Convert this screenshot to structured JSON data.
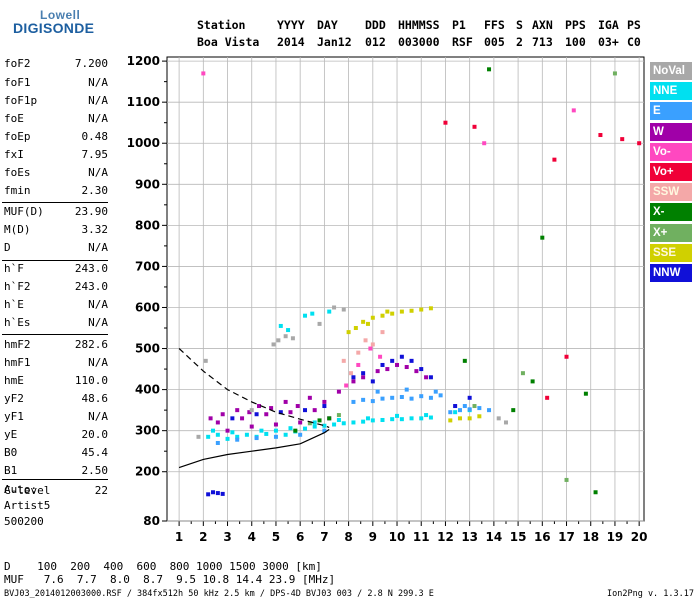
{
  "logo": {
    "line1": "Lowell",
    "line2": "DIGISONDE"
  },
  "header": [
    {
      "label": "Station",
      "value": "Boa Vista"
    },
    {
      "label": "YYYY",
      "value": "2014"
    },
    {
      "label": "DAY",
      "value": "Jan12"
    },
    {
      "label": "DDD",
      "value": "012"
    },
    {
      "label": "HHMMSS",
      "value": "003000"
    },
    {
      "label": "P1",
      "value": "RSF"
    },
    {
      "label": "FFS",
      "value": "005"
    },
    {
      "label": "S",
      "value": "2"
    },
    {
      "label": "AXN",
      "value": "713"
    },
    {
      "label": "PPS",
      "value": "100"
    },
    {
      "label": "IGA",
      "value": "03+"
    },
    {
      "label": "PS",
      "value": "C0"
    }
  ],
  "params": [
    {
      "label": "foF2",
      "value": "7.200"
    },
    {
      "label": "foF1",
      "value": "N/A"
    },
    {
      "label": "foF1p",
      "value": "N/A"
    },
    {
      "label": "foE",
      "value": "N/A"
    },
    {
      "label": "foEp",
      "value": "0.48"
    },
    {
      "label": "fxI",
      "value": "7.95"
    },
    {
      "label": "foEs",
      "value": "N/A"
    },
    {
      "label": "fmin",
      "value": "2.30"
    },
    {
      "label": "MUF(D)",
      "value": "23.90"
    },
    {
      "label": "M(D)",
      "value": "3.32"
    },
    {
      "label": "D",
      "value": "N/A"
    },
    {
      "label": "h`F",
      "value": "243.0"
    },
    {
      "label": "h`F2",
      "value": "243.0"
    },
    {
      "label": "h`E",
      "value": "N/A"
    },
    {
      "label": "h`Es",
      "value": "N/A"
    },
    {
      "label": "hmF2",
      "value": "282.6"
    },
    {
      "label": "hmF1",
      "value": "N/A"
    },
    {
      "label": "hmE",
      "value": "110.0"
    },
    {
      "label": "yF2",
      "value": "48.6"
    },
    {
      "label": "yF1",
      "value": "N/A"
    },
    {
      "label": "yE",
      "value": "20.0"
    },
    {
      "label": "B0",
      "value": "45.4"
    },
    {
      "label": "B1",
      "value": "2.50"
    },
    {
      "label": "C-level",
      "value": "22"
    }
  ],
  "notes": [
    "Auto:",
    "Artist5",
    "500200"
  ],
  "legend": [
    {
      "label": "NoVal",
      "color": "#a8a8a8"
    },
    {
      "label": "NNE",
      "color": "#00e0f0"
    },
    {
      "label": "E",
      "color": "#3aa0ff"
    },
    {
      "label": "W",
      "color": "#a000a8"
    },
    {
      "label": "Vo-",
      "color": "#ff48c0"
    },
    {
      "label": "Vo+",
      "color": "#f00038"
    },
    {
      "label": "SSW",
      "color": "#f4a8a8"
    },
    {
      "label": "X-",
      "color": "#008000"
    },
    {
      "label": "X+",
      "color": "#70b060"
    },
    {
      "label": "SSE",
      "color": "#d0d000"
    },
    {
      "label": "NNW",
      "color": "#1010d8"
    }
  ],
  "muf_table": {
    "d_line": "D    100  200  400  600  800 1000 1500 3000 [km]",
    "muf_line": "MUF   7.6  7.7  8.0  8.7  9.5 10.8 14.4 23.9 [MHz]"
  },
  "footer": {
    "left": "BVJ03_2014012003000.RSF / 384fx512h 50 kHz 2.5 km / DPS-4D BVJ03 003 / 2.8 N 299.3 E",
    "right": "Ion2Png v. 1.3.17"
  },
  "chart_data": {
    "type": "scatter",
    "xlim": [
      0.5,
      20.2
    ],
    "ylim": [
      80,
      1210
    ],
    "x_ticks": [
      "1",
      "2",
      "3",
      "4",
      "5",
      "6",
      "7",
      "8",
      "9",
      "10",
      "11",
      "12",
      "13",
      "14",
      "15",
      "16",
      "17",
      "18",
      "19",
      "20"
    ],
    "y_ticks": [
      "80",
      "200",
      "300",
      "400",
      "500",
      "600",
      "700",
      "800",
      "900",
      "1000",
      "1100",
      "1200"
    ],
    "grid": true,
    "xlabel": "",
    "ylabel": "",
    "series": [
      {
        "name": "NNE",
        "color": "#00e0f0",
        "points": [
          [
            2.2,
            285
          ],
          [
            2.6,
            290
          ],
          [
            3.0,
            280
          ],
          [
            3.4,
            285
          ],
          [
            3.8,
            290
          ],
          [
            4.2,
            285
          ],
          [
            4.6,
            292
          ],
          [
            5.0,
            300
          ],
          [
            5.4,
            290
          ],
          [
            5.8,
            298
          ],
          [
            6.2,
            305
          ],
          [
            6.6,
            310
          ],
          [
            7.0,
            312
          ],
          [
            7.4,
            315
          ],
          [
            7.8,
            318
          ],
          [
            8.2,
            320
          ],
          [
            8.6,
            322
          ],
          [
            9.0,
            325
          ],
          [
            9.4,
            326
          ],
          [
            9.8,
            328
          ],
          [
            10.2,
            328
          ],
          [
            10.6,
            330
          ],
          [
            11.0,
            330
          ],
          [
            11.4,
            332
          ],
          [
            2.4,
            300
          ],
          [
            3.2,
            296
          ],
          [
            4.4,
            300
          ],
          [
            5.6,
            306
          ],
          [
            6.6,
            320
          ],
          [
            7.6,
            326
          ],
          [
            8.8,
            330
          ],
          [
            10.0,
            336
          ],
          [
            11.2,
            338
          ],
          [
            12.4,
            345
          ],
          [
            13.0,
            350
          ],
          [
            5.2,
            555
          ],
          [
            5.5,
            545
          ],
          [
            6.2,
            580
          ],
          [
            6.5,
            585
          ],
          [
            7.2,
            590
          ]
        ]
      },
      {
        "name": "E",
        "color": "#3aa0ff",
        "points": [
          [
            8.2,
            370
          ],
          [
            8.6,
            375
          ],
          [
            9.0,
            372
          ],
          [
            9.4,
            378
          ],
          [
            9.8,
            380
          ],
          [
            10.2,
            382
          ],
          [
            10.6,
            378
          ],
          [
            11.0,
            384
          ],
          [
            11.4,
            380
          ],
          [
            11.8,
            386
          ],
          [
            12.2,
            345
          ],
          [
            12.6,
            350
          ],
          [
            13.0,
            352
          ],
          [
            13.4,
            355
          ],
          [
            13.8,
            350
          ],
          [
            2.6,
            270
          ],
          [
            3.4,
            278
          ],
          [
            4.2,
            282
          ],
          [
            5.0,
            285
          ],
          [
            6.0,
            290
          ],
          [
            7.0,
            300
          ],
          [
            9.2,
            395
          ],
          [
            10.4,
            400
          ],
          [
            11.6,
            395
          ],
          [
            12.8,
            360
          ]
        ]
      },
      {
        "name": "W",
        "color": "#a000a8",
        "points": [
          [
            2.3,
            330
          ],
          [
            2.8,
            340
          ],
          [
            3.4,
            350
          ],
          [
            3.9,
            345
          ],
          [
            4.3,
            360
          ],
          [
            4.8,
            355
          ],
          [
            5.4,
            370
          ],
          [
            5.9,
            360
          ],
          [
            6.4,
            380
          ],
          [
            7.0,
            370
          ],
          [
            7.6,
            395
          ],
          [
            8.2,
            420
          ],
          [
            8.6,
            430
          ],
          [
            9.2,
            445
          ],
          [
            9.6,
            450
          ],
          [
            10.0,
            460
          ],
          [
            10.4,
            455
          ],
          [
            10.8,
            445
          ],
          [
            11.2,
            430
          ],
          [
            3.0,
            300
          ],
          [
            4.0,
            310
          ],
          [
            5.0,
            315
          ],
          [
            6.0,
            320
          ],
          [
            7.2,
            330
          ],
          [
            2.6,
            320
          ],
          [
            3.6,
            330
          ],
          [
            4.6,
            340
          ],
          [
            5.6,
            345
          ],
          [
            6.6,
            350
          ]
        ]
      },
      {
        "name": "Vo-",
        "color": "#ff48c0",
        "points": [
          [
            8.4,
            460
          ],
          [
            8.9,
            500
          ],
          [
            9.3,
            480
          ],
          [
            7.9,
            410
          ],
          [
            13.6,
            1000
          ],
          [
            17.3,
            1080
          ],
          [
            2.0,
            1170
          ]
        ]
      },
      {
        "name": "Vo+",
        "color": "#f00038",
        "points": [
          [
            12.0,
            1050
          ],
          [
            13.2,
            1040
          ],
          [
            16.5,
            960
          ],
          [
            17.0,
            480
          ],
          [
            18.4,
            1020
          ],
          [
            19.3,
            1010
          ],
          [
            20.0,
            1000
          ],
          [
            16.2,
            380
          ]
        ]
      },
      {
        "name": "SSW",
        "color": "#f4a8a8",
        "points": [
          [
            8.4,
            490
          ],
          [
            8.7,
            520
          ],
          [
            9.0,
            510
          ],
          [
            9.4,
            540
          ],
          [
            8.1,
            440
          ],
          [
            7.8,
            470
          ]
        ]
      },
      {
        "name": "X-",
        "color": "#008000",
        "points": [
          [
            6.8,
            325
          ],
          [
            7.2,
            330
          ],
          [
            5.8,
            300
          ],
          [
            14.8,
            350
          ],
          [
            15.6,
            420
          ],
          [
            16.0,
            770
          ],
          [
            17.8,
            390
          ],
          [
            13.8,
            1180
          ],
          [
            12.8,
            470
          ],
          [
            18.2,
            150
          ]
        ]
      },
      {
        "name": "X+",
        "color": "#70b060",
        "points": [
          [
            6.4,
            318
          ],
          [
            7.6,
            338
          ],
          [
            13.2,
            360
          ],
          [
            15.2,
            440
          ],
          [
            19.0,
            1170
          ],
          [
            17.0,
            180
          ]
        ]
      },
      {
        "name": "SSE",
        "color": "#d0d000",
        "points": [
          [
            8.0,
            540
          ],
          [
            8.3,
            550
          ],
          [
            8.6,
            565
          ],
          [
            9.0,
            575
          ],
          [
            9.4,
            580
          ],
          [
            9.8,
            585
          ],
          [
            10.2,
            590
          ],
          [
            10.6,
            592
          ],
          [
            11.0,
            595
          ],
          [
            11.4,
            598
          ],
          [
            12.2,
            325
          ],
          [
            12.6,
            330
          ],
          [
            13.0,
            330
          ],
          [
            13.4,
            335
          ],
          [
            8.8,
            560
          ],
          [
            9.6,
            590
          ]
        ]
      },
      {
        "name": "NNW",
        "color": "#1010d8",
        "points": [
          [
            2.2,
            145
          ],
          [
            2.4,
            150
          ],
          [
            2.6,
            148
          ],
          [
            2.8,
            146
          ],
          [
            8.2,
            430
          ],
          [
            8.6,
            440
          ],
          [
            9.0,
            420
          ],
          [
            9.4,
            460
          ],
          [
            9.8,
            470
          ],
          [
            10.2,
            480
          ],
          [
            10.6,
            470
          ],
          [
            11.0,
            450
          ],
          [
            11.4,
            430
          ],
          [
            12.4,
            360
          ],
          [
            13.0,
            380
          ],
          [
            3.2,
            330
          ],
          [
            4.2,
            340
          ],
          [
            5.2,
            345
          ],
          [
            6.2,
            350
          ],
          [
            7.0,
            360
          ]
        ]
      },
      {
        "name": "NoVal",
        "color": "#a8a8a8",
        "points": [
          [
            1.8,
            285
          ],
          [
            2.1,
            470
          ],
          [
            4.9,
            510
          ],
          [
            5.1,
            520
          ],
          [
            5.4,
            530
          ],
          [
            5.7,
            525
          ],
          [
            4.0,
            350
          ],
          [
            6.8,
            560
          ],
          [
            7.4,
            600
          ],
          [
            7.8,
            595
          ],
          [
            14.2,
            330
          ],
          [
            14.5,
            320
          ]
        ]
      }
    ],
    "curves": [
      {
        "color": "#000000",
        "dashed": false,
        "x": [
          1.0,
          2.0,
          3.0,
          4.0,
          5.0,
          6.0,
          7.0,
          7.2
        ],
        "y": [
          210,
          230,
          242,
          250,
          258,
          268,
          295,
          303
        ]
      },
      {
        "color": "#000000",
        "dashed": true,
        "x": [
          1.0,
          2.0,
          3.0,
          4.0,
          5.0,
          6.0,
          7.0,
          7.2
        ],
        "y": [
          500,
          445,
          400,
          370,
          345,
          328,
          312,
          308
        ]
      }
    ]
  }
}
